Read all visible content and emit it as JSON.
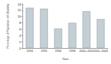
{
  "chart_data": {
    "type": "bar",
    "y_label": "Percentage of Population with Disability",
    "x_label": "Year",
    "categories": [
      "1994",
      "1995",
      "1996",
      "1998",
      "2000–2001",
      "2001–2003"
    ],
    "values": [
      12.8,
      12.5,
      6.2,
      8.0,
      11.7,
      9.2
    ],
    "color": "#c3cfd4",
    "ylim": [
      0,
      14
    ],
    "yticks": [
      0,
      2,
      4,
      6,
      8,
      10,
      12,
      14
    ],
    "grid": false
  }
}
